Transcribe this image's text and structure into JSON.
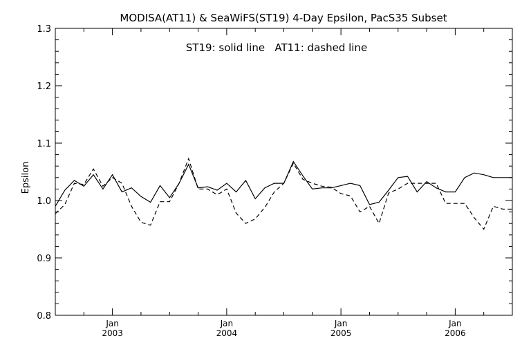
{
  "chart_data": {
    "type": "line",
    "title": "MODISA(AT11) & SeaWiFS(ST19) 4-Day Epsilon, PacS35 Subset",
    "annotation": "ST19: solid line   AT11: dashed line",
    "xlabel": "",
    "ylabel": "Epsilon",
    "ylim": [
      0.8,
      1.3
    ],
    "yticks": [
      "0.8",
      "0.9",
      "1.0",
      "1.1",
      "1.2",
      "1.3"
    ],
    "xlim": [
      "2002-07",
      "2006-07"
    ],
    "xticks": [
      {
        "month": "Jan",
        "year": "2003",
        "date": "2003-01"
      },
      {
        "month": "Jan",
        "year": "2004",
        "date": "2004-01"
      },
      {
        "month": "Jan",
        "year": "2005",
        "date": "2005-01"
      },
      {
        "month": "Jan",
        "year": "2006",
        "date": "2006-01"
      }
    ],
    "grid": false,
    "series": [
      {
        "name": "ST19",
        "style": "solid",
        "x": [
          "2002-07",
          "2002-08",
          "2002-09",
          "2002-10",
          "2002-11",
          "2002-12",
          "2003-01",
          "2003-02",
          "2003-03",
          "2003-04",
          "2003-05",
          "2003-06",
          "2003-07",
          "2003-08",
          "2003-09",
          "2003-10",
          "2003-11",
          "2003-12",
          "2004-01",
          "2004-02",
          "2004-03",
          "2004-04",
          "2004-05",
          "2004-06",
          "2004-07",
          "2004-08",
          "2004-09",
          "2004-10",
          "2004-11",
          "2004-12",
          "2005-01",
          "2005-02",
          "2005-03",
          "2005-04",
          "2005-05",
          "2005-06",
          "2005-07",
          "2005-08",
          "2005-09",
          "2005-10",
          "2005-11",
          "2005-12",
          "2006-01",
          "2006-02",
          "2006-03",
          "2006-04",
          "2006-05",
          "2006-06",
          "2006-07"
        ],
        "values": [
          0.99,
          1.018,
          1.035,
          1.025,
          1.045,
          1.02,
          1.045,
          1.015,
          1.022,
          1.007,
          0.997,
          1.026,
          1.005,
          1.03,
          1.063,
          1.022,
          1.024,
          1.018,
          1.03,
          1.015,
          1.035,
          1.003,
          1.022,
          1.03,
          1.03,
          1.068,
          1.043,
          1.02,
          1.022,
          1.022,
          1.026,
          1.03,
          1.026,
          0.993,
          0.997,
          1.018,
          1.04,
          1.042,
          1.015,
          1.033,
          1.022,
          1.015,
          1.015,
          1.04,
          1.048,
          1.045,
          1.04,
          1.04,
          1.04
        ]
      },
      {
        "name": "AT11",
        "style": "dashed",
        "x": [
          "2002-07",
          "2002-08",
          "2002-09",
          "2002-10",
          "2002-11",
          "2002-12",
          "2003-01",
          "2003-02",
          "2003-03",
          "2003-04",
          "2003-05",
          "2003-06",
          "2003-07",
          "2003-08",
          "2003-09",
          "2003-10",
          "2003-11",
          "2003-12",
          "2004-01",
          "2004-02",
          "2004-03",
          "2004-04",
          "2004-05",
          "2004-06",
          "2004-07",
          "2004-08",
          "2004-09",
          "2004-10",
          "2004-11",
          "2004-12",
          "2005-01",
          "2005-02",
          "2005-03",
          "2005-04",
          "2005-05",
          "2005-06",
          "2005-07",
          "2005-08",
          "2005-09",
          "2005-10",
          "2005-11",
          "2005-12",
          "2006-01",
          "2006-02",
          "2006-03",
          "2006-04",
          "2006-05",
          "2006-06",
          "2006-07"
        ],
        "values": [
          0.977,
          0.993,
          1.03,
          1.028,
          1.055,
          1.025,
          1.04,
          1.03,
          0.99,
          0.962,
          0.957,
          0.998,
          0.998,
          1.03,
          1.073,
          1.02,
          1.02,
          1.01,
          1.02,
          0.978,
          0.96,
          0.968,
          0.988,
          1.015,
          1.03,
          1.065,
          1.037,
          1.03,
          1.025,
          1.023,
          1.012,
          1.008,
          0.98,
          0.99,
          0.96,
          1.013,
          1.02,
          1.03,
          1.03,
          1.03,
          1.03,
          0.995,
          0.995,
          0.995,
          0.97,
          0.95,
          0.99,
          0.985,
          0.985
        ]
      }
    ]
  }
}
